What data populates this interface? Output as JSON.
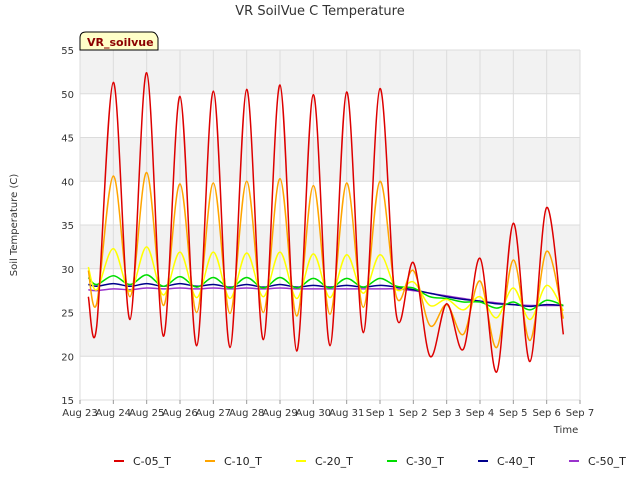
{
  "chart_data": {
    "type": "line",
    "title": "VR SoilVue C Temperature",
    "xlabel": "Time",
    "ylabel": "Soil Temperature (C)",
    "ylim": [
      15,
      55
    ],
    "yticks": [
      15,
      20,
      25,
      30,
      35,
      40,
      45,
      50,
      55
    ],
    "xlim": [
      "Aug 23",
      "Sep 7"
    ],
    "xticks": [
      "Aug 23",
      "Aug 24",
      "Aug 25",
      "Aug 26",
      "Aug 27",
      "Aug 28",
      "Aug 29",
      "Aug 30",
      "Aug 31",
      "Sep 1",
      "Sep 2",
      "Sep 3",
      "Sep 4",
      "Sep 5",
      "Sep 6",
      "Sep 7"
    ],
    "grid": true,
    "legend_position": "bottom",
    "station_label": "VR_soilvue",
    "series": [
      {
        "name": "C-05_T",
        "color": "#dd0000",
        "x": [
          "Aug 23 06:00",
          "Aug 23 12:00",
          "Aug 24 00:00",
          "Aug 24 12:00",
          "Aug 25 00:00",
          "Aug 25 12:00",
          "Aug 26 00:00",
          "Aug 26 12:00",
          "Aug 27 00:00",
          "Aug 27 12:00",
          "Aug 28 00:00",
          "Aug 28 12:00",
          "Aug 29 00:00",
          "Aug 29 12:00",
          "Aug 30 00:00",
          "Aug 30 12:00",
          "Aug 31 00:00",
          "Aug 31 12:00",
          "Sep 1 00:00",
          "Sep 1 12:00",
          "Sep 2 00:00",
          "Sep 2 12:00",
          "Sep 3 00:00",
          "Sep 3 12:00",
          "Sep 4 00:00",
          "Sep 4 12:00",
          "Sep 5 00:00",
          "Sep 5 12:00",
          "Sep 6 00:00",
          "Sep 6 12:00"
        ],
        "y": [
          26.8,
          23.4,
          51.3,
          24.2,
          52.4,
          22.3,
          49.7,
          21.2,
          50.3,
          21.0,
          50.5,
          21.9,
          51.0,
          20.6,
          49.9,
          21.2,
          50.2,
          22.7,
          50.6,
          24.5,
          30.7,
          20.0,
          26.0,
          20.8,
          31.2,
          18.2,
          35.2,
          19.4,
          37.0,
          22.5
        ]
      },
      {
        "name": "C-10_T",
        "color": "#ffa500",
        "x": [
          "Aug 23 06:00",
          "Aug 23 12:00",
          "Aug 24 00:00",
          "Aug 24 12:00",
          "Aug 25 00:00",
          "Aug 25 12:00",
          "Aug 26 00:00",
          "Aug 26 12:00",
          "Aug 27 00:00",
          "Aug 27 12:00",
          "Aug 28 00:00",
          "Aug 28 12:00",
          "Aug 29 00:00",
          "Aug 29 12:00",
          "Aug 30 00:00",
          "Aug 30 12:00",
          "Aug 31 00:00",
          "Aug 31 12:00",
          "Sep 1 00:00",
          "Sep 1 12:00",
          "Sep 2 00:00",
          "Sep 2 12:00",
          "Sep 3 00:00",
          "Sep 3 12:00",
          "Sep 4 00:00",
          "Sep 4 12:00",
          "Sep 5 00:00",
          "Sep 5 12:00",
          "Sep 6 00:00",
          "Sep 6 12:00"
        ],
        "y": [
          29.8,
          26.0,
          40.6,
          26.8,
          41.0,
          25.8,
          39.7,
          25.0,
          39.8,
          24.9,
          40.0,
          25.0,
          40.3,
          24.6,
          39.5,
          24.8,
          39.8,
          25.6,
          40.0,
          26.7,
          29.8,
          23.5,
          25.9,
          22.5,
          28.6,
          21.0,
          31.0,
          21.8,
          32.0,
          24.3
        ]
      },
      {
        "name": "C-20_T",
        "color": "#ffff00",
        "x": [
          "Aug 23 06:00",
          "Aug 23 12:00",
          "Aug 24 00:00",
          "Aug 24 12:00",
          "Aug 25 00:00",
          "Aug 25 12:00",
          "Aug 26 00:00",
          "Aug 26 12:00",
          "Aug 27 00:00",
          "Aug 27 12:00",
          "Aug 28 00:00",
          "Aug 28 12:00",
          "Aug 29 00:00",
          "Aug 29 12:00",
          "Aug 30 00:00",
          "Aug 30 12:00",
          "Aug 31 00:00",
          "Aug 31 12:00",
          "Sep 1 00:00",
          "Sep 1 12:00",
          "Sep 2 00:00",
          "Sep 2 12:00",
          "Sep 3 00:00",
          "Sep 3 12:00",
          "Sep 4 00:00",
          "Sep 4 12:00",
          "Sep 5 00:00",
          "Sep 5 12:00",
          "Sep 6 00:00",
          "Sep 6 12:00"
        ],
        "y": [
          30.2,
          27.6,
          32.3,
          27.4,
          32.5,
          27.0,
          31.9,
          26.7,
          31.9,
          26.6,
          31.8,
          26.8,
          31.9,
          26.6,
          31.7,
          26.7,
          31.6,
          27.2,
          31.6,
          27.6,
          28.5,
          25.8,
          26.5,
          25.3,
          26.8,
          24.4,
          27.8,
          24.2,
          28.1,
          25.2
        ]
      },
      {
        "name": "C-30_T",
        "color": "#00dd00",
        "x": [
          "Aug 23 06:00",
          "Aug 23 12:00",
          "Aug 24 00:00",
          "Aug 24 12:00",
          "Aug 25 00:00",
          "Aug 25 12:00",
          "Aug 26 00:00",
          "Aug 26 12:00",
          "Aug 27 00:00",
          "Aug 27 12:00",
          "Aug 28 00:00",
          "Aug 28 12:00",
          "Aug 29 00:00",
          "Aug 29 12:00",
          "Aug 30 00:00",
          "Aug 30 12:00",
          "Aug 31 00:00",
          "Aug 31 12:00",
          "Sep 1 00:00",
          "Sep 1 12:00",
          "Sep 2 00:00",
          "Sep 2 12:00",
          "Sep 3 00:00",
          "Sep 3 12:00",
          "Sep 4 00:00",
          "Sep 4 12:00",
          "Sep 5 00:00",
          "Sep 5 12:00",
          "Sep 6 00:00",
          "Sep 6 12:00"
        ],
        "y": [
          29.0,
          28.2,
          29.2,
          28.2,
          29.3,
          28.0,
          29.1,
          27.9,
          29.0,
          27.8,
          29.0,
          27.8,
          29.0,
          27.8,
          28.9,
          27.8,
          28.9,
          27.9,
          28.9,
          28.0,
          27.8,
          26.8,
          26.6,
          26.2,
          26.2,
          25.5,
          26.2,
          25.3,
          26.4,
          25.8
        ]
      },
      {
        "name": "C-40_T",
        "color": "#00008b",
        "x": [
          "Aug 23 06:00",
          "Aug 23 12:00",
          "Aug 24 00:00",
          "Aug 24 12:00",
          "Aug 25 00:00",
          "Aug 25 12:00",
          "Aug 26 00:00",
          "Aug 26 12:00",
          "Aug 27 00:00",
          "Aug 27 12:00",
          "Aug 28 00:00",
          "Aug 28 12:00",
          "Aug 29 00:00",
          "Aug 29 12:00",
          "Aug 30 00:00",
          "Aug 30 12:00",
          "Aug 31 00:00",
          "Aug 31 12:00",
          "Sep 1 00:00",
          "Sep 1 12:00",
          "Sep 2 00:00",
          "Sep 2 12:00",
          "Sep 3 00:00",
          "Sep 3 12:00",
          "Sep 4 00:00",
          "Sep 4 12:00",
          "Sep 5 00:00",
          "Sep 5 12:00",
          "Sep 6 00:00",
          "Sep 6 12:00"
        ],
        "y": [
          28.2,
          28.0,
          28.3,
          28.0,
          28.3,
          28.0,
          28.3,
          28.0,
          28.2,
          27.9,
          28.2,
          27.9,
          28.2,
          27.9,
          28.1,
          27.9,
          28.1,
          27.9,
          28.1,
          27.9,
          27.6,
          27.2,
          26.8,
          26.5,
          26.3,
          26.0,
          25.9,
          25.7,
          25.9,
          25.8
        ]
      },
      {
        "name": "C-50_T",
        "color": "#9932cc",
        "x": [
          "Aug 23 06:00",
          "Aug 23 12:00",
          "Aug 24 00:00",
          "Aug 24 12:00",
          "Aug 25 00:00",
          "Aug 25 12:00",
          "Aug 26 00:00",
          "Aug 26 12:00",
          "Aug 27 00:00",
          "Aug 27 12:00",
          "Aug 28 00:00",
          "Aug 28 12:00",
          "Aug 29 00:00",
          "Aug 29 12:00",
          "Aug 30 00:00",
          "Aug 30 12:00",
          "Aug 31 00:00",
          "Aug 31 12:00",
          "Sep 1 00:00",
          "Sep 1 12:00",
          "Sep 2 00:00",
          "Sep 2 12:00",
          "Sep 3 00:00",
          "Sep 3 12:00",
          "Sep 4 00:00",
          "Sep 4 12:00",
          "Sep 5 00:00",
          "Sep 5 12:00",
          "Sep 6 00:00",
          "Sep 6 12:00"
        ],
        "y": [
          27.6,
          27.5,
          27.7,
          27.6,
          27.8,
          27.7,
          27.8,
          27.7,
          27.8,
          27.7,
          27.8,
          27.7,
          27.8,
          27.7,
          27.7,
          27.7,
          27.7,
          27.7,
          27.7,
          27.7,
          27.5,
          27.2,
          26.9,
          26.6,
          26.3,
          26.1,
          25.9,
          25.8,
          25.8,
          25.8
        ]
      }
    ]
  }
}
